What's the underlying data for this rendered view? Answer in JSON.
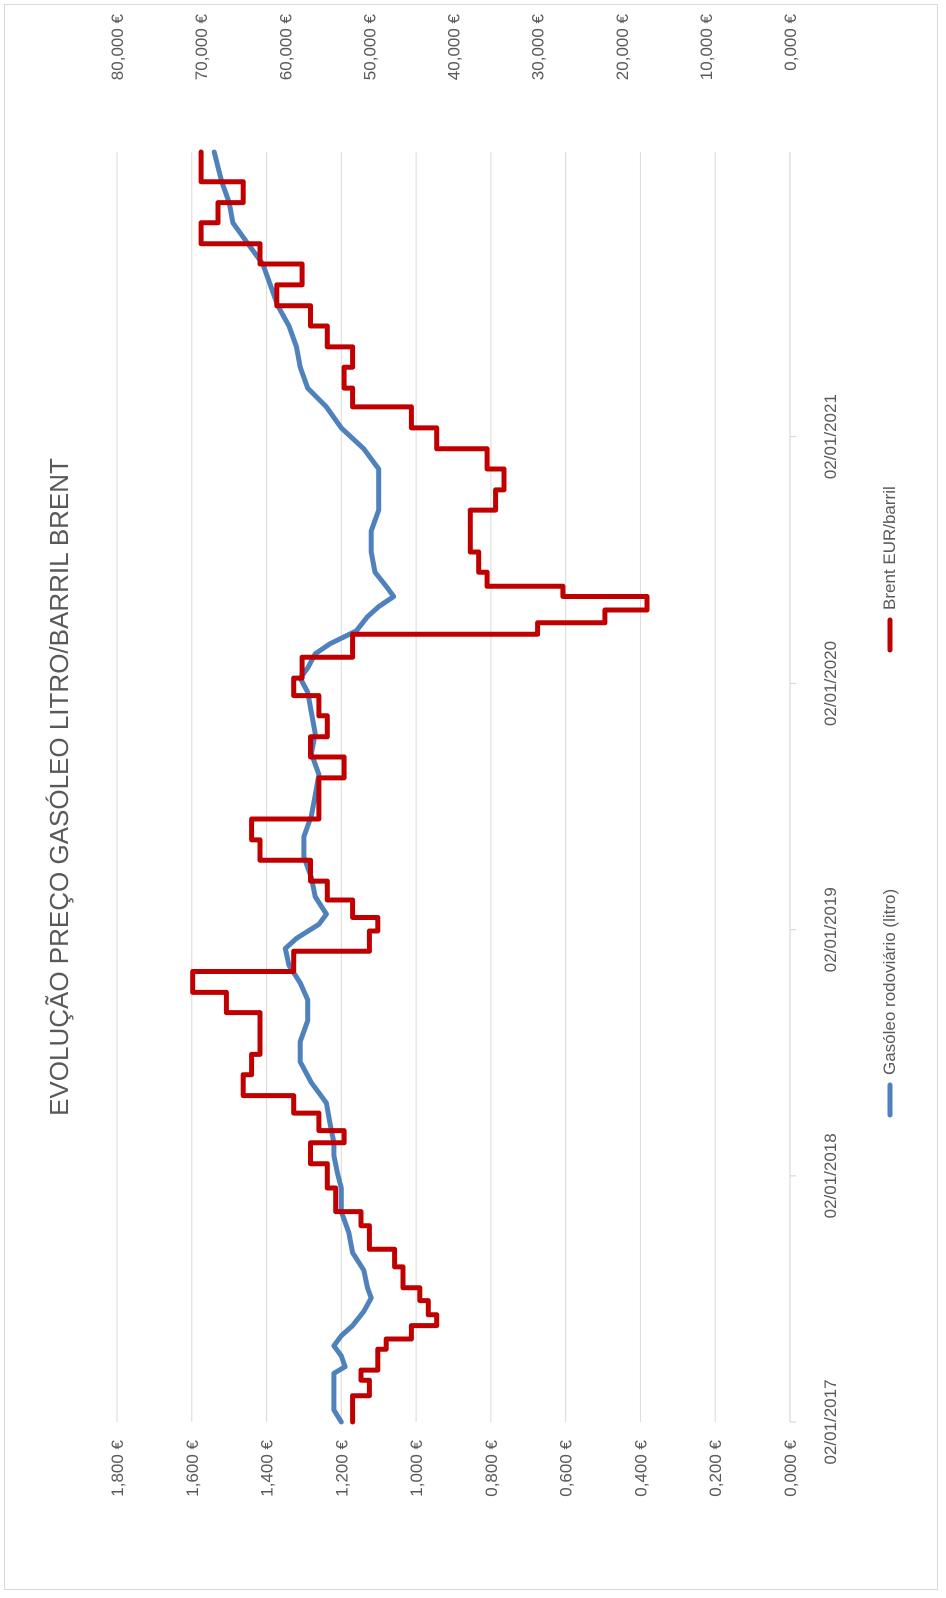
{
  "chart_data": {
    "type": "line",
    "title": "EVOLUÇÃO PREÇO GASÓLEO LITRO/BARRIL BRENT",
    "xlabel": "",
    "ylabel": "",
    "x_ticks": [
      "02/01/2017",
      "02/01/2018",
      "02/01/2019",
      "02/01/2020",
      "02/01/2021"
    ],
    "x_range": [
      "2017-01-02",
      "2022-02-28"
    ],
    "y_left": {
      "ylim": [
        0,
        1.8
      ],
      "ticks": [
        "0,000 €",
        "0,200 €",
        "0,400 €",
        "0,600 €",
        "0,800 €",
        "1,000 €",
        "1,200 €",
        "1,400 €",
        "1,600 €",
        "1,800 €"
      ]
    },
    "y_right": {
      "ylim": [
        0,
        80
      ],
      "ticks": [
        "0,000 €",
        "10,000 €",
        "20,000 €",
        "30,000 €",
        "40,000 €",
        "50,000 €",
        "60,000 €",
        "70,000 €",
        "80,000 €"
      ]
    },
    "grid": true,
    "legend": "bottom",
    "series": [
      {
        "name": "Gasóleo rodoviário (litro)",
        "axis": "left",
        "color": "#4f81bd",
        "points": [
          [
            "2017-01-02",
            1.2
          ],
          [
            "2017-01-20",
            1.22
          ],
          [
            "2017-02-15",
            1.22
          ],
          [
            "2017-03-15",
            1.22
          ],
          [
            "2017-03-25",
            1.19
          ],
          [
            "2017-04-10",
            1.2
          ],
          [
            "2017-04-25",
            1.22
          ],
          [
            "2017-05-10",
            1.2
          ],
          [
            "2017-05-25",
            1.17
          ],
          [
            "2017-06-15",
            1.14
          ],
          [
            "2017-07-05",
            1.12
          ],
          [
            "2017-07-20",
            1.13
          ],
          [
            "2017-08-15",
            1.14
          ],
          [
            "2017-09-10",
            1.17
          ],
          [
            "2017-10-10",
            1.18
          ],
          [
            "2017-11-10",
            1.2
          ],
          [
            "2017-12-15",
            1.2
          ],
          [
            "2018-01-05",
            1.21
          ],
          [
            "2018-02-01",
            1.22
          ],
          [
            "2018-02-20",
            1.22
          ],
          [
            "2018-03-20",
            1.23
          ],
          [
            "2018-04-20",
            1.24
          ],
          [
            "2018-05-20",
            1.28
          ],
          [
            "2018-06-20",
            1.31
          ],
          [
            "2018-07-20",
            1.31
          ],
          [
            "2018-08-20",
            1.29
          ],
          [
            "2018-09-20",
            1.29
          ],
          [
            "2018-10-15",
            1.31
          ],
          [
            "2018-11-10",
            1.34
          ],
          [
            "2018-12-05",
            1.35
          ],
          [
            "2018-12-20",
            1.32
          ],
          [
            "2019-01-10",
            1.26
          ],
          [
            "2019-01-25",
            1.24
          ],
          [
            "2019-02-20",
            1.27
          ],
          [
            "2019-03-20",
            1.28
          ],
          [
            "2019-04-20",
            1.3
          ],
          [
            "2019-05-20",
            1.3
          ],
          [
            "2019-06-20",
            1.28
          ],
          [
            "2019-07-20",
            1.27
          ],
          [
            "2019-08-20",
            1.26
          ],
          [
            "2019-09-20",
            1.28
          ],
          [
            "2019-10-20",
            1.27
          ],
          [
            "2019-11-20",
            1.28
          ],
          [
            "2019-12-20",
            1.29
          ],
          [
            "2020-01-10",
            1.31
          ],
          [
            "2020-01-25",
            1.29
          ],
          [
            "2020-02-15",
            1.27
          ],
          [
            "2020-03-01",
            1.23
          ],
          [
            "2020-03-20",
            1.16
          ],
          [
            "2020-04-10",
            1.13
          ],
          [
            "2020-04-25",
            1.1
          ],
          [
            "2020-05-10",
            1.06
          ],
          [
            "2020-05-25",
            1.08
          ],
          [
            "2020-06-15",
            1.11
          ],
          [
            "2020-07-15",
            1.12
          ],
          [
            "2020-08-15",
            1.12
          ],
          [
            "2020-09-15",
            1.1
          ],
          [
            "2020-10-15",
            1.1
          ],
          [
            "2020-11-15",
            1.1
          ],
          [
            "2020-12-15",
            1.14
          ],
          [
            "2021-01-15",
            1.2
          ],
          [
            "2021-02-15",
            1.24
          ],
          [
            "2021-03-15",
            1.29
          ],
          [
            "2021-04-15",
            1.31
          ],
          [
            "2021-05-15",
            1.32
          ],
          [
            "2021-06-15",
            1.34
          ],
          [
            "2021-07-15",
            1.37
          ],
          [
            "2021-08-15",
            1.39
          ],
          [
            "2021-09-15",
            1.41
          ],
          [
            "2021-10-15",
            1.45
          ],
          [
            "2021-11-15",
            1.49
          ],
          [
            "2021-12-15",
            1.5
          ],
          [
            "2022-01-15",
            1.52
          ],
          [
            "2022-02-28",
            1.54
          ]
        ]
      },
      {
        "name": "Brent EUR/barril",
        "axis": "right",
        "color": "#c00000",
        "points": [
          [
            "2017-01-02",
            52
          ],
          [
            "2017-01-25",
            52
          ],
          [
            "2017-02-10",
            50
          ],
          [
            "2017-03-05",
            51
          ],
          [
            "2017-03-20",
            49
          ],
          [
            "2017-04-20",
            48
          ],
          [
            "2017-05-05",
            45
          ],
          [
            "2017-05-25",
            42
          ],
          [
            "2017-06-10",
            43
          ],
          [
            "2017-07-01",
            44
          ],
          [
            "2017-07-20",
            46
          ],
          [
            "2017-08-20",
            47
          ],
          [
            "2017-09-15",
            50
          ],
          [
            "2017-10-20",
            51
          ],
          [
            "2017-11-10",
            54
          ],
          [
            "2017-12-15",
            55
          ],
          [
            "2018-01-20",
            57
          ],
          [
            "2018-02-20",
            53
          ],
          [
            "2018-03-10",
            56
          ],
          [
            "2018-04-05",
            59
          ],
          [
            "2018-05-01",
            65
          ],
          [
            "2018-06-01",
            64
          ],
          [
            "2018-07-01",
            63
          ],
          [
            "2018-08-01",
            63
          ],
          [
            "2018-09-01",
            67
          ],
          [
            "2018-10-01",
            71
          ],
          [
            "2018-11-01",
            59
          ],
          [
            "2018-12-01",
            50
          ],
          [
            "2018-12-31",
            49
          ],
          [
            "2019-01-20",
            52
          ],
          [
            "2019-02-15",
            55
          ],
          [
            "2019-03-15",
            57
          ],
          [
            "2019-04-15",
            63
          ],
          [
            "2019-05-15",
            64
          ],
          [
            "2019-06-15",
            56
          ],
          [
            "2019-07-15",
            56
          ],
          [
            "2019-08-15",
            53
          ],
          [
            "2019-09-15",
            57
          ],
          [
            "2019-10-15",
            55
          ],
          [
            "2019-11-15",
            56
          ],
          [
            "2019-12-15",
            59
          ],
          [
            "2020-01-10",
            58
          ],
          [
            "2020-02-10",
            52
          ],
          [
            "2020-03-15",
            30
          ],
          [
            "2020-04-01",
            22
          ],
          [
            "2020-04-20",
            17
          ],
          [
            "2020-05-10",
            27
          ],
          [
            "2020-05-25",
            36
          ],
          [
            "2020-06-15",
            37
          ],
          [
            "2020-07-15",
            38
          ],
          [
            "2020-08-15",
            38
          ],
          [
            "2020-09-15",
            35
          ],
          [
            "2020-10-15",
            34
          ],
          [
            "2020-11-15",
            36
          ],
          [
            "2020-12-15",
            42
          ],
          [
            "2021-01-15",
            45
          ],
          [
            "2021-02-15",
            52
          ],
          [
            "2021-03-15",
            53
          ],
          [
            "2021-04-15",
            52
          ],
          [
            "2021-05-15",
            55
          ],
          [
            "2021-06-15",
            57
          ],
          [
            "2021-07-15",
            61
          ],
          [
            "2021-08-15",
            58
          ],
          [
            "2021-09-15",
            63
          ],
          [
            "2021-10-15",
            70
          ],
          [
            "2021-11-15",
            68
          ],
          [
            "2021-12-15",
            65
          ],
          [
            "2022-01-15",
            70
          ],
          [
            "2022-02-28",
            70
          ]
        ]
      }
    ]
  }
}
